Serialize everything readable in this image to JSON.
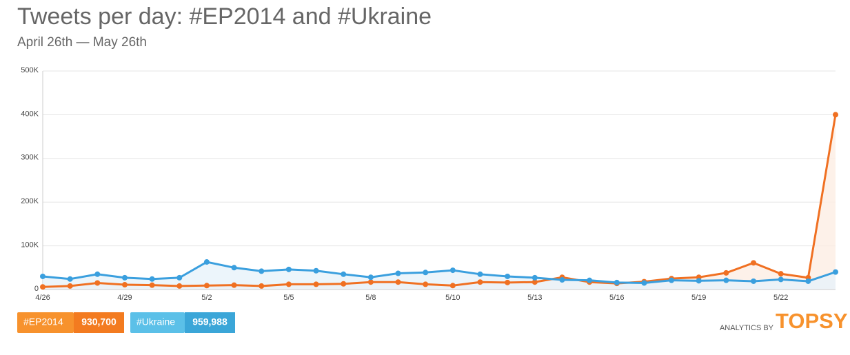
{
  "chart_data": {
    "type": "line",
    "title": "Tweets per day: #EP2014 and #Ukraine",
    "subtitle": "April 26th — May 26th",
    "categories": [
      "4/26",
      null,
      null,
      "4/29",
      null,
      null,
      "5/2",
      null,
      null,
      "5/5",
      null,
      null,
      "5/8",
      null,
      null,
      "5/10",
      null,
      null,
      "5/13",
      null,
      null,
      "5/16",
      null,
      null,
      "5/19",
      null,
      null,
      "5/22",
      null,
      null
    ],
    "series": [
      {
        "name": "#EP2014",
        "color": "#f07022",
        "fill": "#fdeee4",
        "total": "930,700",
        "values": [
          6000,
          8000,
          15000,
          11000,
          10000,
          8000,
          9000,
          10000,
          8000,
          12000,
          12000,
          13000,
          17000,
          17000,
          12000,
          9000,
          17000,
          16000,
          17000,
          28000,
          17000,
          14000,
          18000,
          25000,
          28000,
          38000,
          61000,
          36000,
          27000,
          400000
        ]
      },
      {
        "name": "#Ukraine",
        "color": "#3a9fde",
        "fill": "#e7f3fa",
        "total": "959,988",
        "values": [
          30000,
          24000,
          35000,
          27000,
          24000,
          27000,
          63000,
          50000,
          42000,
          46000,
          43000,
          35000,
          28000,
          37000,
          39000,
          44000,
          35000,
          30000,
          27000,
          22000,
          21000,
          16000,
          15000,
          21000,
          20000,
          21000,
          19000,
          23000,
          19000,
          40000
        ]
      }
    ],
    "ylim": [
      0,
      500000
    ],
    "yticks": [
      0,
      {
        "value": 100000,
        "label": "100K"
      },
      {
        "value": 200000,
        "label": "200K"
      },
      {
        "value": 300000,
        "label": "300K"
      },
      {
        "value": 400000,
        "label": "400K"
      },
      {
        "value": 500000,
        "label": "500K"
      }
    ],
    "grid": true,
    "branding": {
      "prefix": "ANALYTICS BY",
      "name": "TOPSY"
    }
  }
}
